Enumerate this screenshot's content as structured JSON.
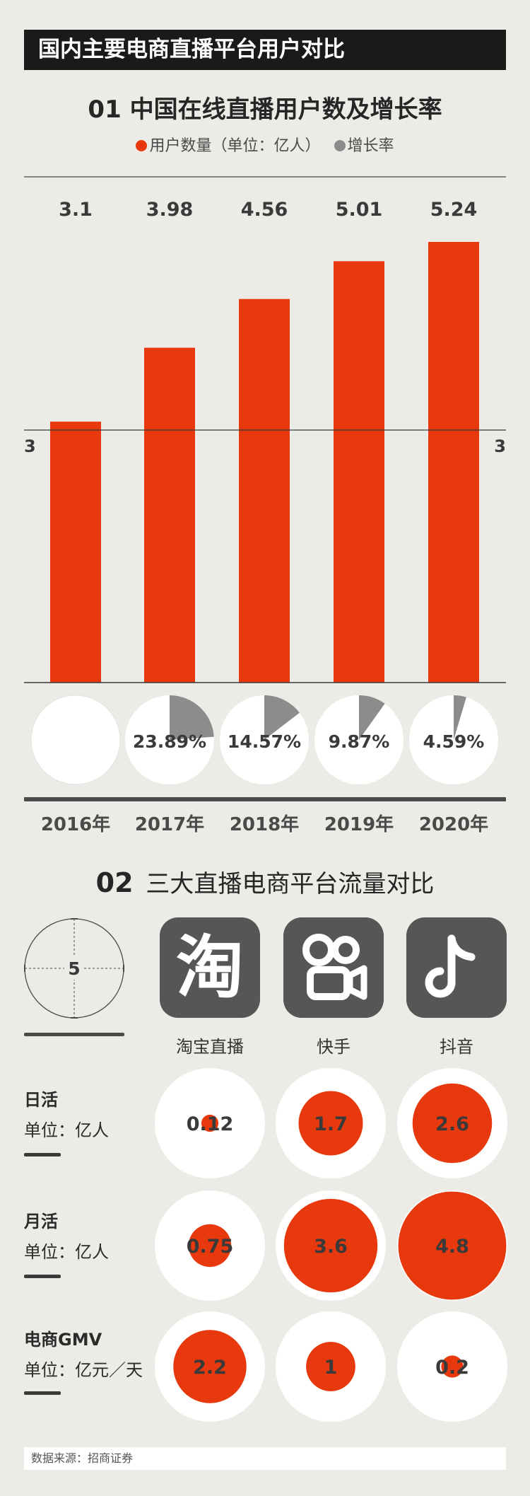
{
  "header": {
    "title": "国内主要电商直播平台用户对比"
  },
  "chart1": {
    "title": "01 中国在线直播用户数及增长率",
    "legend": [
      {
        "label": "用户数量（单位：亿人）",
        "color": "#e8380d"
      },
      {
        "label": "增长率",
        "color": "#8c8c8c"
      }
    ],
    "side_label_left": "3",
    "side_label_right": "3"
  },
  "chart_data": [
    {
      "type": "bar",
      "title": "01 中国在线直播用户数及增长率",
      "categories": [
        "2016年",
        "2017年",
        "2018年",
        "2019年",
        "2020年"
      ],
      "series": [
        {
          "name": "用户数量（单位：亿人）",
          "values": [
            3.1,
            3.98,
            4.56,
            5.01,
            5.24
          ],
          "labels": [
            "3.1",
            "3.98",
            "4.56",
            "5.01",
            "5.24"
          ]
        },
        {
          "name": "增长率",
          "values": [
            null,
            23.89,
            14.57,
            9.87,
            4.59
          ],
          "labels": [
            "",
            "23.89%",
            "14.57%",
            "9.87%",
            "4.59%"
          ]
        }
      ],
      "reference_value": 3,
      "colors": {
        "bar": "#e8380d",
        "pie": "#8c8c8c",
        "pie_bg": "#ffffff"
      }
    },
    {
      "type": "scatter",
      "title": "02 三大直播电商平台流量对比",
      "categories": [
        "淘宝直播",
        "快手",
        "抖音"
      ],
      "series": [
        {
          "name": "日活",
          "unit": "单位：亿人",
          "values": [
            0.12,
            1.7,
            2.6
          ],
          "labels": [
            "0.12",
            "1.7",
            "2.6"
          ]
        },
        {
          "name": "月活",
          "unit": "单位：亿人",
          "values": [
            0.75,
            3.6,
            4.8
          ],
          "labels": [
            "0.75",
            "3.6",
            "4.8"
          ]
        },
        {
          "name": "电商GMV",
          "unit": "单位：亿元／天",
          "values": [
            2.2,
            1,
            0.2
          ],
          "labels": [
            "2.2",
            "1",
            "0.2"
          ]
        }
      ],
      "scale_reference": {
        "label": "5",
        "value": 5
      },
      "colors": {
        "bubble": "#e8380d",
        "ring": "#ffffff"
      }
    }
  ],
  "chart2": {
    "title_num": "02",
    "title_text": "三大直播电商平台流量对比",
    "platforms": [
      {
        "name": "淘宝直播",
        "icon": "taobao-logo-icon",
        "glyph": "淘"
      },
      {
        "name": "快手",
        "icon": "kuaishou-logo-icon"
      },
      {
        "name": "抖音",
        "icon": "douyin-logo-icon"
      }
    ],
    "rows": [
      {
        "label": "日活",
        "unit": "单位：亿人"
      },
      {
        "label": "月活",
        "unit": "单位：亿人"
      },
      {
        "label": "电商GMV",
        "unit": "单位：亿元／天"
      }
    ]
  },
  "footer": {
    "source": "数据来源：招商证券"
  }
}
